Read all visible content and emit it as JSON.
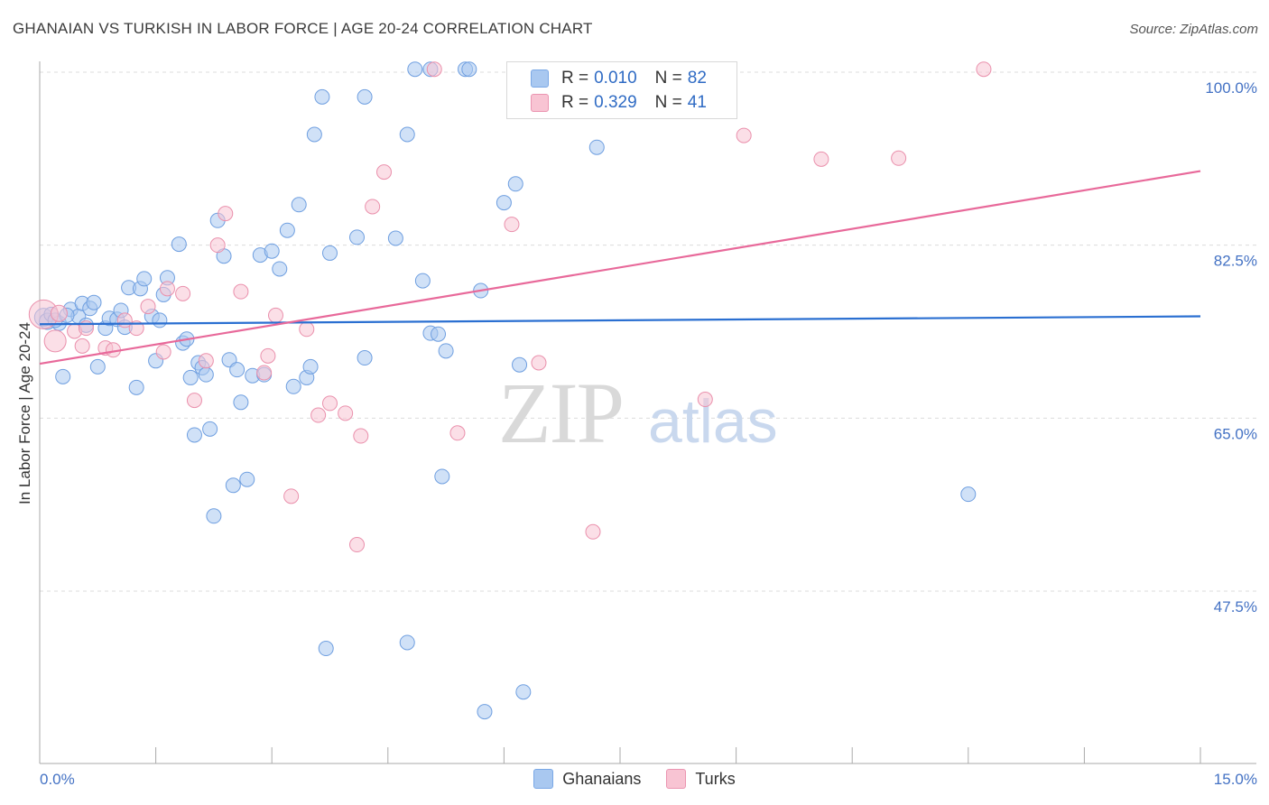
{
  "header": {
    "title": "GHANAIAN VS TURKISH IN LABOR FORCE | AGE 20-24 CORRELATION CHART",
    "source": "Source: ZipAtlas.com"
  },
  "watermark": {
    "zip": "ZIP",
    "atlas": "atlas"
  },
  "legend_top": {
    "rows": [
      {
        "r_label": "R =",
        "r_value": "0.010",
        "n_label": "N =",
        "n_value": "82",
        "color": "#a9c8f0",
        "border": "#7aa8e6"
      },
      {
        "r_label": "R =",
        "r_value": "0.329",
        "n_label": "N =",
        "n_value": "41",
        "color": "#f8c4d3",
        "border": "#eb95b1"
      }
    ]
  },
  "legend_bottom": {
    "items": [
      {
        "label": "Ghanaians",
        "color": "#a9c8f0",
        "border": "#7aa8e6"
      },
      {
        "label": "Turks",
        "color": "#f8c4d3",
        "border": "#eb95b1"
      }
    ]
  },
  "chart_data": {
    "type": "scatter",
    "title": "GHANAIAN VS TURKISH IN LABOR FORCE | AGE 20-24 CORRELATION CHART",
    "xlabel": "",
    "ylabel": "In Labor Force | Age 20-24",
    "xlim": [
      0,
      15
    ],
    "ylim": [
      30,
      102
    ],
    "x_tick_labels": [
      "0.0%",
      "15.0%"
    ],
    "y_ticks": [
      47.5,
      65.0,
      82.5,
      100.0
    ],
    "y_tick_labels": [
      "47.5%",
      "65.0%",
      "82.5%",
      "100.0%"
    ],
    "grid": true,
    "series": [
      {
        "name": "Ghanaians",
        "color": "#a9c8f0",
        "stroke": "#6f9fe0",
        "trend_color": "#2a6fd1",
        "trend": {
          "x": [
            0,
            15
          ],
          "y": [
            74.5,
            75.3
          ]
        },
        "points": [
          [
            0.05,
            75.2
          ],
          [
            0.1,
            74.8
          ],
          [
            0.15,
            75.5
          ],
          [
            0.25,
            74.6
          ],
          [
            0.3,
            69.2
          ],
          [
            0.4,
            76.0
          ],
          [
            0.5,
            75.3
          ],
          [
            0.55,
            76.6
          ],
          [
            0.6,
            74.4
          ],
          [
            0.65,
            76.1
          ],
          [
            0.7,
            76.7
          ],
          [
            0.75,
            70.2
          ],
          [
            0.85,
            74.1
          ],
          [
            0.9,
            75.1
          ],
          [
            1.0,
            75.0
          ],
          [
            1.05,
            75.9
          ],
          [
            1.1,
            74.2
          ],
          [
            1.15,
            78.2
          ],
          [
            1.25,
            68.1
          ],
          [
            1.3,
            78.1
          ],
          [
            1.35,
            79.1
          ],
          [
            1.45,
            75.3
          ],
          [
            1.5,
            70.8
          ],
          [
            1.55,
            74.9
          ],
          [
            1.6,
            77.5
          ],
          [
            1.65,
            79.2
          ],
          [
            1.8,
            82.6
          ],
          [
            1.85,
            72.6
          ],
          [
            1.9,
            73.0
          ],
          [
            1.95,
            69.1
          ],
          [
            2.0,
            63.3
          ],
          [
            2.05,
            70.6
          ],
          [
            2.1,
            70.1
          ],
          [
            2.15,
            69.4
          ],
          [
            2.2,
            63.9
          ],
          [
            2.25,
            55.1
          ],
          [
            2.3,
            85.0
          ],
          [
            2.38,
            81.4
          ],
          [
            2.45,
            70.9
          ],
          [
            2.5,
            58.2
          ],
          [
            2.55,
            69.9
          ],
          [
            2.6,
            66.6
          ],
          [
            2.68,
            58.8
          ],
          [
            2.75,
            69.3
          ],
          [
            2.85,
            81.5
          ],
          [
            2.9,
            69.4
          ],
          [
            3.0,
            81.9
          ],
          [
            3.1,
            80.1
          ],
          [
            3.2,
            84.0
          ],
          [
            3.28,
            68.2
          ],
          [
            3.35,
            86.6
          ],
          [
            3.45,
            69.1
          ],
          [
            3.5,
            70.2
          ],
          [
            3.55,
            93.7
          ],
          [
            3.65,
            97.5
          ],
          [
            3.7,
            41.7
          ],
          [
            3.75,
            81.7
          ],
          [
            4.1,
            83.3
          ],
          [
            4.2,
            97.5
          ],
          [
            4.2,
            71.1
          ],
          [
            4.6,
            83.2
          ],
          [
            4.75,
            42.3
          ],
          [
            4.75,
            93.7
          ],
          [
            4.85,
            100.3
          ],
          [
            4.95,
            78.9
          ],
          [
            5.05,
            73.6
          ],
          [
            5.15,
            73.5
          ],
          [
            5.2,
            59.1
          ],
          [
            5.25,
            71.8
          ],
          [
            5.5,
            100.3
          ],
          [
            5.55,
            100.3
          ],
          [
            5.7,
            77.9
          ],
          [
            5.75,
            35.3
          ],
          [
            6.0,
            86.8
          ],
          [
            6.15,
            88.7
          ],
          [
            6.2,
            70.4
          ],
          [
            6.25,
            37.3
          ],
          [
            7.2,
            92.4
          ],
          [
            12.0,
            57.3
          ],
          [
            0.2,
            74.9
          ],
          [
            0.35,
            75.4
          ],
          [
            5.05,
            100.3
          ]
        ],
        "sizes": [
          18,
          16,
          14,
          14,
          14,
          14,
          14,
          14,
          14,
          14,
          14,
          14,
          14,
          14,
          14,
          14,
          14,
          14,
          14,
          14,
          14,
          14,
          14,
          14,
          14,
          14,
          14,
          14,
          14,
          14,
          14,
          14,
          14,
          14,
          14,
          14,
          14,
          14,
          14,
          14,
          14,
          14,
          14,
          14,
          14,
          14,
          14,
          14,
          14,
          14,
          14,
          14,
          14,
          14,
          14,
          14,
          14,
          14,
          14,
          14,
          14,
          14,
          14,
          14,
          14,
          14,
          14,
          14,
          14,
          14,
          14,
          14,
          14,
          14,
          14,
          14,
          14,
          14,
          14,
          14,
          14,
          14
        ]
      },
      {
        "name": "Turks",
        "color": "#f8c4d3",
        "stroke": "#ea90ac",
        "trend_color": "#e8699a",
        "trend": {
          "x": [
            0,
            15
          ],
          "y": [
            70.5,
            90.0
          ]
        },
        "points": [
          [
            0.05,
            75.5
          ],
          [
            0.2,
            72.8
          ],
          [
            0.25,
            75.6
          ],
          [
            0.45,
            73.8
          ],
          [
            0.55,
            72.3
          ],
          [
            0.6,
            74.1
          ],
          [
            0.85,
            72.1
          ],
          [
            0.95,
            71.9
          ],
          [
            1.1,
            74.9
          ],
          [
            1.25,
            74.1
          ],
          [
            1.4,
            76.3
          ],
          [
            1.6,
            71.7
          ],
          [
            1.65,
            78.1
          ],
          [
            1.85,
            77.6
          ],
          [
            2.0,
            66.8
          ],
          [
            2.15,
            70.8
          ],
          [
            2.3,
            82.5
          ],
          [
            2.4,
            85.7
          ],
          [
            2.6,
            77.8
          ],
          [
            2.9,
            69.6
          ],
          [
            2.95,
            71.3
          ],
          [
            3.05,
            75.4
          ],
          [
            3.25,
            57.1
          ],
          [
            3.45,
            74.0
          ],
          [
            3.6,
            65.3
          ],
          [
            3.75,
            66.5
          ],
          [
            3.95,
            65.5
          ],
          [
            4.1,
            52.2
          ],
          [
            4.15,
            63.2
          ],
          [
            4.3,
            86.4
          ],
          [
            4.45,
            89.9
          ],
          [
            5.1,
            100.3
          ],
          [
            5.4,
            63.5
          ],
          [
            6.1,
            84.6
          ],
          [
            6.45,
            70.6
          ],
          [
            7.15,
            53.5
          ],
          [
            8.6,
            66.9
          ],
          [
            9.1,
            93.6
          ],
          [
            10.1,
            91.2
          ],
          [
            11.1,
            91.3
          ],
          [
            12.2,
            100.3
          ]
        ],
        "sizes": [
          30,
          22,
          16,
          14,
          14,
          14,
          14,
          14,
          14,
          14,
          14,
          14,
          14,
          14,
          14,
          14,
          14,
          14,
          14,
          14,
          14,
          14,
          14,
          14,
          14,
          14,
          14,
          14,
          14,
          14,
          14,
          14,
          14,
          14,
          14,
          14,
          14,
          14,
          14,
          14,
          14
        ]
      }
    ]
  }
}
